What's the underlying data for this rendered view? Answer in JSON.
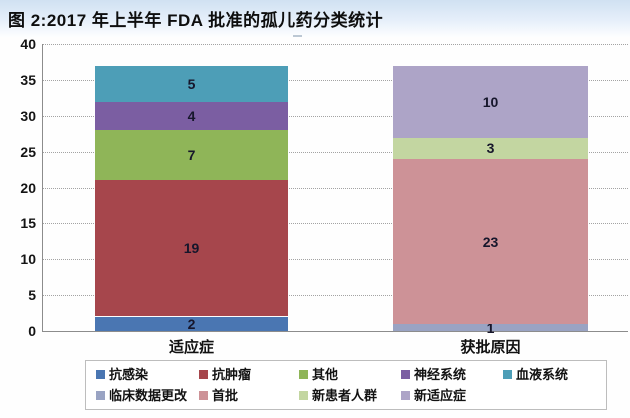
{
  "title": "图 2:2017 年上半年 FDA 批准的孤儿药分类统计",
  "chart_data": {
    "type": "bar",
    "stacked": true,
    "title": "图 2:2017 年上半年 FDA 批准的孤儿药分类统计",
    "categories": [
      "适应症",
      "获批原因"
    ],
    "series": [
      {
        "name": "抗感染",
        "color": "#4a76b2",
        "values": [
          2,
          0
        ]
      },
      {
        "name": "抗肿瘤",
        "color": "#a6464c",
        "values": [
          19,
          0
        ]
      },
      {
        "name": "其他",
        "color": "#8fb558",
        "values": [
          7,
          0
        ]
      },
      {
        "name": "神经系统",
        "color": "#7b5ea2",
        "values": [
          4,
          0
        ]
      },
      {
        "name": "血液系统",
        "color": "#4d9eb7",
        "values": [
          5,
          0
        ]
      },
      {
        "name": "临床数据更改",
        "color": "#99a3c3",
        "values": [
          0,
          1
        ]
      },
      {
        "name": "首批",
        "color": "#cd9297",
        "values": [
          0,
          23
        ]
      },
      {
        "name": "新患者人群",
        "color": "#c3d6a1",
        "values": [
          0,
          3
        ]
      },
      {
        "name": "新适应症",
        "color": "#ada4c7",
        "values": [
          0,
          10
        ]
      }
    ],
    "xlabel": "",
    "ylabel": "",
    "ylim": [
      0,
      40
    ],
    "yticks": [
      0,
      5,
      10,
      15,
      20,
      25,
      30,
      35,
      40
    ],
    "grid": "horizontal-dotted",
    "legend_position": "bottom-box",
    "legend_rows": [
      [
        "抗感染",
        "抗肿瘤",
        "其他",
        "神经系统",
        "血液系统"
      ],
      [
        "临床数据更改",
        "首批",
        "新患者人群",
        "新适应症"
      ]
    ]
  }
}
